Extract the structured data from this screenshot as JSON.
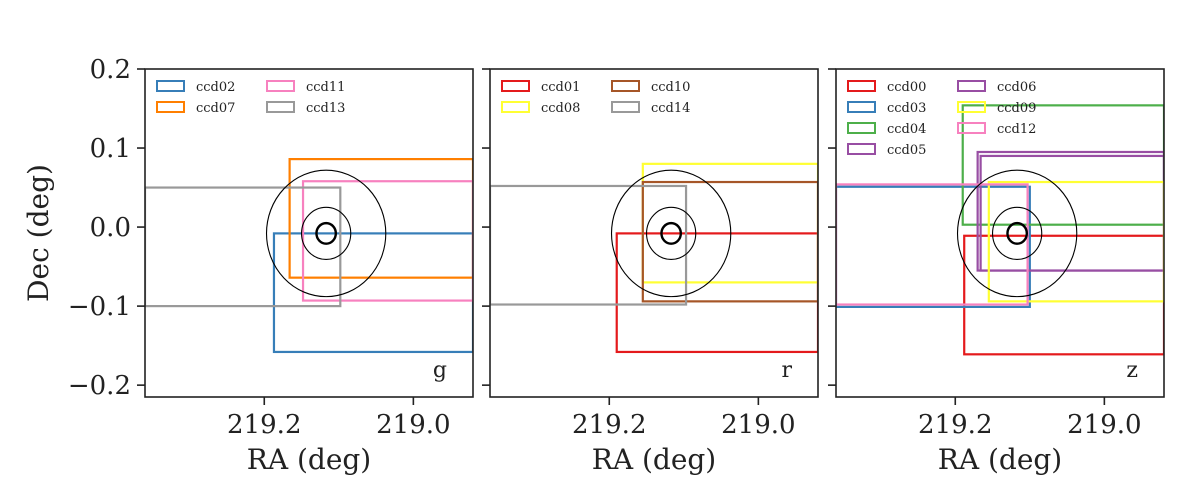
{
  "figure": {
    "type": "ccd-footprint-panels"
  },
  "chart_data": [
    {
      "type": "scatter",
      "band": "g",
      "xlabel": "RA (deg)",
      "ylabel": "Dec (deg)",
      "xlim": [
        219.36,
        218.92
      ],
      "ylim": [
        -0.215,
        0.2
      ],
      "xticks": [
        219.2,
        219.0
      ],
      "xtick_labels": [
        "219.2",
        "219.0"
      ],
      "yticks": [
        -0.2,
        -0.1,
        0.0,
        0.1,
        0.2
      ],
      "ytick_labels": [
        "−0.2",
        "−0.1",
        "0.0",
        "0.1",
        "0.2"
      ],
      "legend": {
        "placement": "top-left",
        "columns": 2,
        "entries": [
          "ccd02",
          "ccd07",
          "ccd11",
          "ccd13"
        ]
      },
      "target": {
        "ra": 219.117,
        "dec": -0.008,
        "radii_deg": [
          0.013,
          0.033,
          0.08
        ]
      },
      "ccds": [
        {
          "name": "ccd02",
          "color": "#377eb8",
          "ra_min": 218.92,
          "ra_max": 219.187,
          "dec_min": -0.158,
          "dec_max": -0.008
        },
        {
          "name": "ccd07",
          "color": "#ff7f00",
          "ra_min": 218.92,
          "ra_max": 219.166,
          "dec_min": -0.064,
          "dec_max": 0.086
        },
        {
          "name": "ccd11",
          "color": "#f781bf",
          "ra_min": 218.92,
          "ra_max": 219.148,
          "dec_min": -0.093,
          "dec_max": 0.058
        },
        {
          "name": "ccd13",
          "color": "#999999",
          "ra_min": 219.098,
          "ra_max": 219.36,
          "dec_min": -0.1,
          "dec_max": 0.05
        }
      ]
    },
    {
      "type": "scatter",
      "band": "r",
      "xlabel": "RA (deg)",
      "ylabel": "",
      "xlim": [
        219.36,
        218.92
      ],
      "ylim": [
        -0.215,
        0.2
      ],
      "xticks": [
        219.2,
        219.0
      ],
      "xtick_labels": [
        "219.2",
        "219.0"
      ],
      "yticks": [
        -0.2,
        -0.1,
        0.0,
        0.1,
        0.2
      ],
      "ytick_labels": [],
      "legend": {
        "placement": "top-left",
        "columns": 2,
        "entries": [
          "ccd01",
          "ccd08",
          "ccd10",
          "ccd14"
        ]
      },
      "target": {
        "ra": 219.117,
        "dec": -0.008,
        "radii_deg": [
          0.013,
          0.033,
          0.08
        ]
      },
      "ccds": [
        {
          "name": "ccd01",
          "color": "#e41a1c",
          "ra_min": 218.92,
          "ra_max": 219.19,
          "dec_min": -0.158,
          "dec_max": -0.008
        },
        {
          "name": "ccd08",
          "color": "#ffff33",
          "ra_min": 218.92,
          "ra_max": 219.155,
          "dec_min": -0.07,
          "dec_max": 0.08
        },
        {
          "name": "ccd10",
          "color": "#a65628",
          "ra_min": 218.92,
          "ra_max": 219.155,
          "dec_min": -0.094,
          "dec_max": 0.057
        },
        {
          "name": "ccd14",
          "color": "#999999",
          "ra_min": 219.097,
          "ra_max": 219.36,
          "dec_min": -0.098,
          "dec_max": 0.052
        }
      ]
    },
    {
      "type": "scatter",
      "band": "z",
      "xlabel": "RA (deg)",
      "ylabel": "",
      "xlim": [
        219.36,
        218.92
      ],
      "ylim": [
        -0.215,
        0.2
      ],
      "xticks": [
        219.2,
        219.0
      ],
      "xtick_labels": [
        "219.2",
        "219.0"
      ],
      "yticks": [
        -0.2,
        -0.1,
        0.0,
        0.1,
        0.2
      ],
      "ytick_labels": [],
      "legend": {
        "placement": "top-left",
        "columns": 2,
        "entries": [
          "ccd00",
          "ccd03",
          "ccd04",
          "ccd05",
          "ccd06",
          "ccd09",
          "ccd12"
        ]
      },
      "target": {
        "ra": 219.117,
        "dec": -0.008,
        "radii_deg": [
          0.013,
          0.033,
          0.08
        ]
      },
      "ccds": [
        {
          "name": "ccd00",
          "color": "#e41a1c",
          "ra_min": 218.92,
          "ra_max": 219.188,
          "dec_min": -0.161,
          "dec_max": -0.011
        },
        {
          "name": "ccd03",
          "color": "#377eb8",
          "ra_min": 219.1,
          "ra_max": 219.36,
          "dec_min": -0.101,
          "dec_max": 0.051
        },
        {
          "name": "ccd04",
          "color": "#4daf4a",
          "ra_min": 218.92,
          "ra_max": 219.19,
          "dec_min": 0.003,
          "dec_max": 0.154
        },
        {
          "name": "ccd05",
          "color": "#984ea3",
          "ra_min": 218.92,
          "ra_max": 219.17,
          "dec_min": -0.055,
          "dec_max": 0.095
        },
        {
          "name": "ccd06",
          "color": "#984ea3",
          "ra_min": 218.92,
          "ra_max": 219.166,
          "dec_min": -0.055,
          "dec_max": 0.09
        },
        {
          "name": "ccd09",
          "color": "#ffff33",
          "ra_min": 218.92,
          "ra_max": 219.155,
          "dec_min": -0.094,
          "dec_max": 0.057
        },
        {
          "name": "ccd12",
          "color": "#f781bf",
          "ra_min": 219.103,
          "ra_max": 219.36,
          "dec_min": -0.098,
          "dec_max": 0.054
        }
      ]
    }
  ]
}
